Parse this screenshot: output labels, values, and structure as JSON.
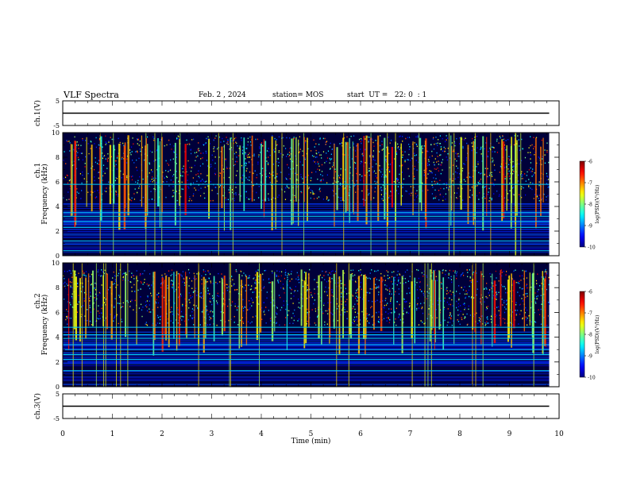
{
  "header": {
    "title": "VLF Spectra",
    "date": "Feb. 2 , 2024",
    "station": "station= MOS",
    "start": "start  UT =   22: 0  : 1"
  },
  "chart_data": [
    {
      "type": "line",
      "ylabel": "ch.1(V)",
      "ylim": [
        -5,
        5
      ],
      "yticks": [
        "5",
        "-5"
      ],
      "xlim": [
        0,
        10
      ],
      "x": [
        0,
        9.8
      ],
      "values": [
        0,
        0
      ]
    },
    {
      "type": "heatmap",
      "ylabel_line1": "ch.1",
      "ylabel_line2": "Frequency (kHz)",
      "ylim": [
        0,
        10
      ],
      "xlim": [
        0,
        10
      ],
      "data_xmax": 9.8,
      "yticks": [
        "0",
        "2",
        "4",
        "6",
        "8",
        "10"
      ],
      "colorbar": {
        "label": "log(PSD)(V²/Hz)",
        "range": [
          -10,
          -6
        ],
        "ticks": [
          "-6",
          "-7",
          "-8",
          "-9",
          "-10"
        ]
      },
      "hlines_khz": [
        0.4,
        1.2,
        2.3,
        2.8,
        3.2,
        3.5,
        5.8
      ],
      "burst_band_khz": [
        4.5,
        9.8
      ],
      "vertical_bursts_per_min": 9
    },
    {
      "type": "heatmap",
      "ylabel_line1": "ch.2",
      "ylabel_line2": "Frequency (kHz)",
      "ylim": [
        0,
        10
      ],
      "xlim": [
        0,
        10
      ],
      "data_xmax": 9.8,
      "yticks": [
        "0",
        "2",
        "4",
        "6",
        "8",
        "10"
      ],
      "colorbar": {
        "label": "log(PSD)(V²/Hz)",
        "range": [
          -10,
          -6
        ],
        "ticks": [
          "-6",
          "-7",
          "-8",
          "-9",
          "-10"
        ]
      },
      "hlines_khz": [
        1.3,
        2.2,
        2.6,
        3.0,
        3.4,
        3.9,
        4.2,
        4.8
      ],
      "burst_band_khz": [
        5.0,
        9.5
      ],
      "vertical_bursts_per_min": 9
    },
    {
      "type": "line",
      "ylabel": "ch.3(V)",
      "ylim": [
        -5,
        5
      ],
      "yticks": [
        "5",
        "-5"
      ],
      "xlim": [
        0,
        10
      ],
      "x": [
        0,
        9.8
      ],
      "values": [
        0,
        0
      ]
    }
  ],
  "x_axis": {
    "label": "Time (min)",
    "ticks": [
      "0",
      "1",
      "2",
      "3",
      "4",
      "5",
      "6",
      "7",
      "8",
      "9",
      "10"
    ]
  }
}
